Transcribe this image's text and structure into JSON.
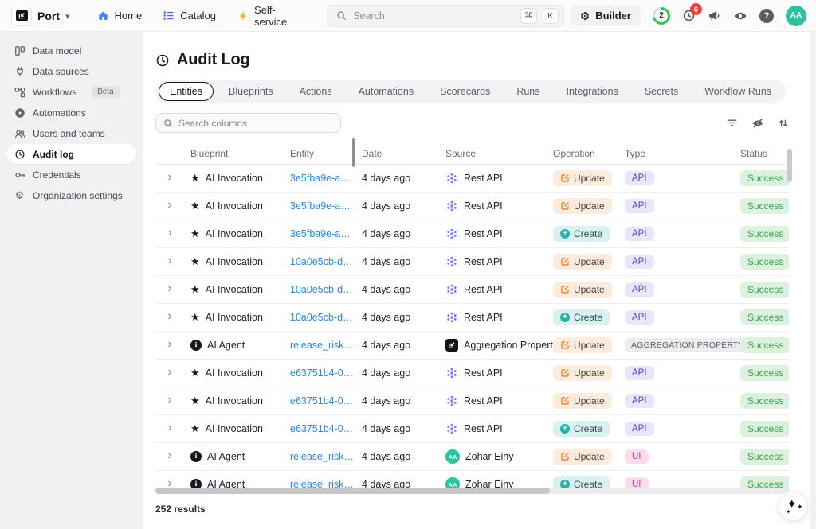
{
  "topbar": {
    "brand": "Port",
    "nav": [
      {
        "label": "Home",
        "icon": "home-icon"
      },
      {
        "label": "Catalog",
        "icon": "catalog-icon"
      },
      {
        "label": "Self-service",
        "icon": "lightning-icon"
      }
    ],
    "search": {
      "placeholder": "Search",
      "shortcut_keys": [
        "⌘",
        "K"
      ]
    },
    "builder_label": "Builder",
    "credits_count": "2",
    "notifications_count": "6",
    "avatar_initials": "AA"
  },
  "sidebar": {
    "items": [
      {
        "label": "Data model",
        "icon": "data-model-icon"
      },
      {
        "label": "Data sources",
        "icon": "plug-icon"
      },
      {
        "label": "Workflows",
        "icon": "workflow-icon",
        "badge": "Beta"
      },
      {
        "label": "Automations",
        "icon": "play-circle-icon"
      },
      {
        "label": "Users and teams",
        "icon": "users-icon"
      },
      {
        "label": "Audit log",
        "icon": "history-icon",
        "selected": true
      },
      {
        "label": "Credentials",
        "icon": "key-icon"
      },
      {
        "label": "Organization settings",
        "icon": "gear-icon"
      }
    ]
  },
  "main": {
    "title": "Audit Log",
    "tabs": [
      "Entities",
      "Blueprints",
      "Actions",
      "Automations",
      "Scorecards",
      "Runs",
      "Integrations",
      "Secrets",
      "Workflow Runs"
    ],
    "active_tab": "Entities",
    "search_columns_placeholder": "Search columns",
    "results_count": "252 results"
  },
  "table": {
    "columns": [
      "Blueprint",
      "Entity",
      "Date",
      "Source",
      "Operation",
      "Type",
      "Status"
    ],
    "rows": [
      {
        "blueprint": "AI Invocation",
        "blueprint_icon": "star",
        "entity": "3e5fba9e-a…",
        "date": "4 days ago",
        "source": "Rest API",
        "source_icon": "rest-api",
        "operation": "Update",
        "type": "API",
        "status": "Success"
      },
      {
        "blueprint": "AI Invocation",
        "blueprint_icon": "star",
        "entity": "3e5fba9e-a…",
        "date": "4 days ago",
        "source": "Rest API",
        "source_icon": "rest-api",
        "operation": "Update",
        "type": "API",
        "status": "Success"
      },
      {
        "blueprint": "AI Invocation",
        "blueprint_icon": "star",
        "entity": "3e5fba9e-a…",
        "date": "4 days ago",
        "source": "Rest API",
        "source_icon": "rest-api",
        "operation": "Create",
        "type": "API",
        "status": "Success"
      },
      {
        "blueprint": "AI Invocation",
        "blueprint_icon": "star",
        "entity": "10a0e5cb-d…",
        "date": "4 days ago",
        "source": "Rest API",
        "source_icon": "rest-api",
        "operation": "Update",
        "type": "API",
        "status": "Success"
      },
      {
        "blueprint": "AI Invocation",
        "blueprint_icon": "star",
        "entity": "10a0e5cb-d…",
        "date": "4 days ago",
        "source": "Rest API",
        "source_icon": "rest-api",
        "operation": "Update",
        "type": "API",
        "status": "Success"
      },
      {
        "blueprint": "AI Invocation",
        "blueprint_icon": "star",
        "entity": "10a0e5cb-d…",
        "date": "4 days ago",
        "source": "Rest API",
        "source_icon": "rest-api",
        "operation": "Create",
        "type": "API",
        "status": "Success"
      },
      {
        "blueprint": "AI Agent",
        "blueprint_icon": "info",
        "entity": "release_risk…",
        "date": "4 days ago",
        "source": "Aggregation Property",
        "source_icon": "port",
        "operation": "Update",
        "type": "AGGREGATION PROPERTY",
        "status": "Success"
      },
      {
        "blueprint": "AI Invocation",
        "blueprint_icon": "star",
        "entity": "e63751b4-0…",
        "date": "4 days ago",
        "source": "Rest API",
        "source_icon": "rest-api",
        "operation": "Update",
        "type": "API",
        "status": "Success"
      },
      {
        "blueprint": "AI Invocation",
        "blueprint_icon": "star",
        "entity": "e63751b4-0…",
        "date": "4 days ago",
        "source": "Rest API",
        "source_icon": "rest-api",
        "operation": "Update",
        "type": "API",
        "status": "Success"
      },
      {
        "blueprint": "AI Invocation",
        "blueprint_icon": "star",
        "entity": "e63751b4-0…",
        "date": "4 days ago",
        "source": "Rest API",
        "source_icon": "rest-api",
        "operation": "Create",
        "type": "API",
        "status": "Success"
      },
      {
        "blueprint": "AI Agent",
        "blueprint_icon": "info",
        "entity": "release_risk…",
        "date": "4 days ago",
        "source": "Zohar Einy",
        "source_icon": "avatar",
        "source_avatar": "AA",
        "operation": "Update",
        "type": "UI",
        "status": "Success"
      },
      {
        "blueprint": "AI Agent",
        "blueprint_icon": "info",
        "entity": "release_risk…",
        "date": "4 days ago",
        "source": "Zohar Einy",
        "source_icon": "avatar",
        "source_avatar": "AA",
        "operation": "Create",
        "type": "UI",
        "status": "Success"
      }
    ]
  },
  "colors": {
    "link_blue": "#2b87e8",
    "update_bg": "#fcecdc",
    "update_icon": "#ee8234",
    "create_bg": "#d9f1f1",
    "create_icon": "#27b2aa",
    "type_api_bg": "#e8e6fa",
    "type_api_text": "#5247c0",
    "type_ui_bg": "#fadcec",
    "type_ui_text": "#bf3e83",
    "type_agg_bg": "#ededef",
    "success_bg": "#dcf2df",
    "success_text": "#3da353",
    "avatar_teal": "#2bc3a0",
    "notification_red": "#e8453c",
    "credits_green": "#2fc454",
    "rest_api_purple": "#7c80f4"
  }
}
